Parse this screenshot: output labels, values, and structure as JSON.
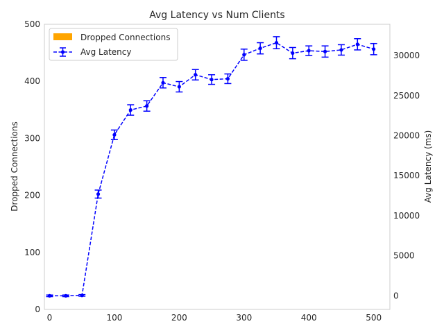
{
  "chart_data": {
    "type": "line",
    "title": "Avg Latency vs Num Clients",
    "xlabel": "",
    "ylabel_left": "Dropped Connections",
    "ylabel_right": "Avg Latency (ms)",
    "xlim": [
      -8,
      525
    ],
    "ylim_left": [
      0,
      500
    ],
    "ylim_right": [
      -1700,
      33900
    ],
    "xticks": [
      0,
      100,
      200,
      300,
      400,
      500
    ],
    "yticks_left": [
      0,
      100,
      200,
      300,
      400,
      500
    ],
    "yticks_right": [
      0,
      5000,
      10000,
      15000,
      20000,
      25000,
      30000
    ],
    "grid": false,
    "legend_position": "top-left",
    "series": [
      {
        "name": "Dropped Connections",
        "kind": "bar",
        "axis": "left",
        "color": "#ffa500",
        "x": [
          0,
          25,
          50,
          75,
          100,
          125,
          150,
          175,
          200,
          225,
          250,
          275,
          300,
          325,
          350,
          375,
          400,
          425,
          450,
          475,
          500
        ],
        "values": [
          0,
          0,
          0,
          0,
          0,
          0,
          0,
          0,
          0,
          0,
          0,
          0,
          0,
          0,
          0,
          0,
          0,
          0,
          0,
          0,
          0
        ]
      },
      {
        "name": "Avg Latency",
        "kind": "errorbar-line",
        "axis": "right",
        "color": "#0000ff",
        "x": [
          0,
          25,
          50,
          75,
          100,
          125,
          150,
          175,
          200,
          225,
          250,
          275,
          300,
          325,
          350,
          375,
          400,
          425,
          450,
          475,
          500
        ],
        "values": [
          0,
          0,
          50,
          12700,
          20100,
          23200,
          23700,
          26600,
          26100,
          27600,
          27000,
          27100,
          30100,
          30900,
          31600,
          30300,
          30600,
          30500,
          30700,
          31400,
          30800
        ],
        "errors": [
          100,
          100,
          100,
          500,
          600,
          650,
          650,
          650,
          650,
          650,
          600,
          600,
          700,
          700,
          750,
          700,
          600,
          700,
          650,
          700,
          700
        ]
      }
    ]
  }
}
